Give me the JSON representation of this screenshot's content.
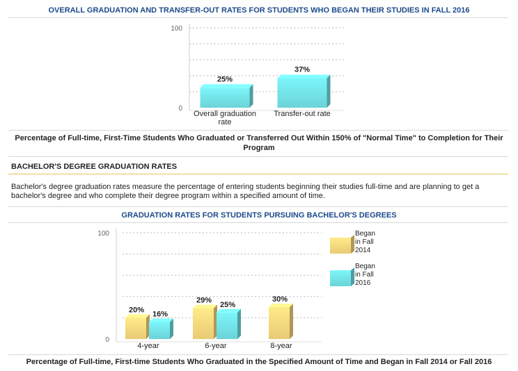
{
  "chart_data": [
    {
      "type": "bar",
      "title": "OVERALL GRADUATION AND TRANSFER-OUT RATES FOR STUDENTS WHO BEGAN THEIR STUDIES IN FALL 2016",
      "categories": [
        [
          "Overall graduation",
          "rate"
        ],
        [
          "Transfer-out rate"
        ]
      ],
      "values": [
        25,
        37
      ],
      "value_labels": [
        "25%",
        "37%"
      ],
      "ylim": [
        0,
        100
      ],
      "y_tick_labels": [
        "0",
        "100"
      ],
      "grid": true,
      "caption": "Percentage of Full-time, First-Time Students Who Graduated or Transferred Out Within 150% of \"Normal Time\" to Completion for Their Program"
    },
    {
      "type": "bar",
      "title": "GRADUATION RATES FOR STUDENTS PURSUING BACHELOR'S DEGREES",
      "categories": [
        "4-year",
        "6-year",
        "8-year"
      ],
      "series": [
        {
          "name": [
            "Began",
            "in Fall",
            "2014"
          ],
          "values": [
            20,
            29,
            30
          ],
          "labels": [
            "20%",
            "29%",
            "30%"
          ],
          "color": "#f3d27a"
        },
        {
          "name": [
            "Began",
            "in Fall",
            "2016"
          ],
          "values": [
            16,
            25,
            null
          ],
          "labels": [
            "16%",
            "25%",
            ""
          ],
          "color": "#6fdce0"
        }
      ],
      "ylim": [
        0,
        100
      ],
      "y_tick_labels": [
        "0",
        "100"
      ],
      "grid": true,
      "legend": "right",
      "caption": "Percentage of Full-time, First-time Students Who Graduated in the Specified Amount of Time and Began in Fall 2014 or Fall 2016"
    }
  ],
  "section": {
    "heading": "BACHELOR'S DEGREE GRADUATION RATES",
    "text": "Bachelor's degree graduation rates measure the percentage of entering students beginning their studies full-time and are planning to get a bachelor's degree and who complete their degree program within a specified amount of time."
  }
}
